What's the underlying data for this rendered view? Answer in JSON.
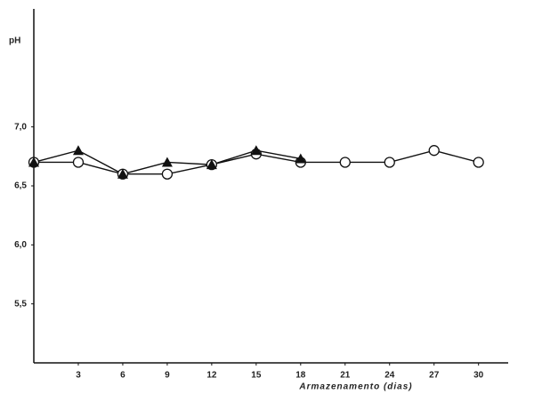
{
  "chart_data": {
    "type": "line",
    "y_label": "pH",
    "x_label": "Armazenamento (dias)",
    "x": [
      0,
      3,
      6,
      9,
      12,
      15,
      18,
      21,
      24,
      27,
      30
    ],
    "series": [
      {
        "marker": "circle",
        "color": "#111111",
        "values": [
          6.7,
          6.7,
          6.6,
          6.6,
          6.68,
          6.77,
          6.7,
          6.7,
          6.7,
          6.8,
          6.7
        ]
      },
      {
        "marker": "triangle",
        "color": "#111111",
        "values": [
          6.7,
          6.8,
          6.6,
          6.7,
          6.68,
          6.8,
          6.73,
          null,
          null,
          null,
          null
        ]
      }
    ],
    "xlim": [
      0,
      32
    ],
    "xticks": [
      3,
      6,
      9,
      12,
      15,
      18,
      21,
      24,
      27,
      30
    ],
    "ylim": [
      5,
      8
    ],
    "yticks": [
      {
        "value": 5.5,
        "label": "5,5"
      },
      {
        "value": 6,
        "label": "6,0"
      },
      {
        "value": 6.5,
        "label": "6,5"
      },
      {
        "value": 7,
        "label": "7,0"
      }
    ],
    "grid": false
  }
}
